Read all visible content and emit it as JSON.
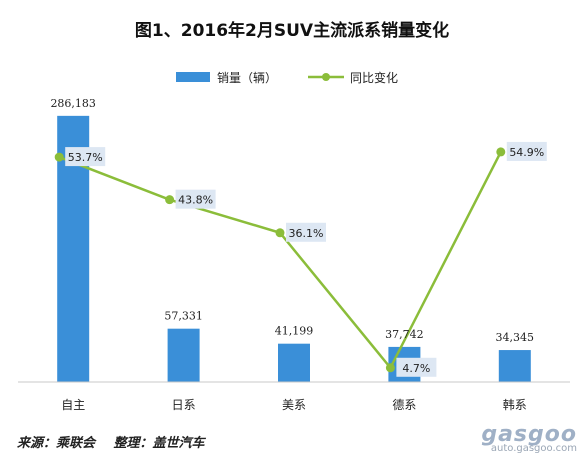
{
  "chart_data": {
    "type": "bar",
    "title": "图1、2016年2月SUV主流派系销量变化",
    "categories": [
      "自主",
      "日系",
      "美系",
      "德系",
      "韩系"
    ],
    "series": [
      {
        "name": "销量（辆）",
        "type": "bar",
        "values": [
          286183,
          57331,
          41199,
          37742,
          34345
        ],
        "labels": [
          "286,183",
          "57,331",
          "41,199",
          "37,742",
          "34,345"
        ]
      },
      {
        "name": "同比变化",
        "type": "line",
        "values": [
          53.7,
          43.8,
          36.1,
          4.7,
          54.9
        ],
        "labels": [
          "53.7%",
          "43.8%",
          "36.1%",
          "4.7%",
          "54.9%"
        ]
      }
    ],
    "bar_ylim": [
      0,
      300000
    ],
    "line_ylim": [
      0,
      60
    ],
    "grid": false,
    "legend": "top",
    "colors": {
      "bar": "#3a8fd8",
      "line": "#8bbd3a",
      "label_box": "#dde7f3"
    }
  },
  "footer": {
    "source": "来源：乘联会",
    "compiler": "整理：盖世汽车"
  },
  "watermark": {
    "brand": "gasgoo",
    "url": "auto.gasgoo.com"
  }
}
